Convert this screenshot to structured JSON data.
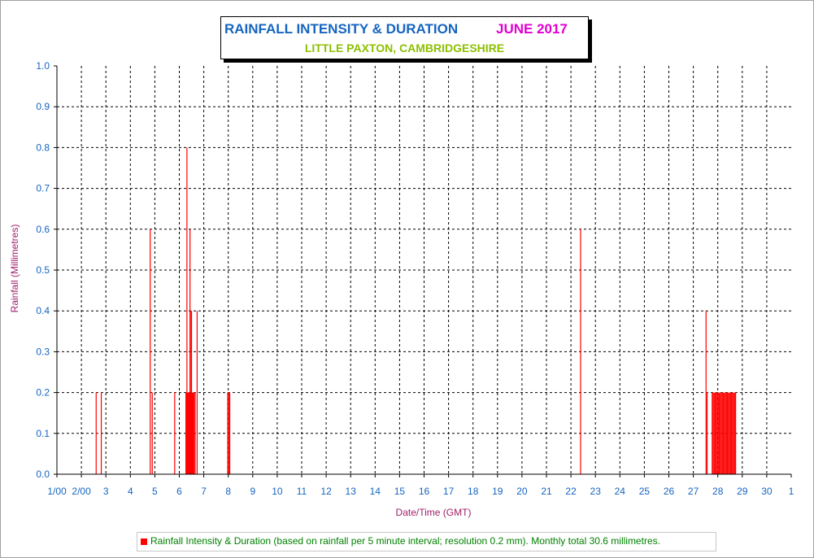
{
  "title": "RAINFALL INTENSITY & DURATION",
  "month": "JUNE 2017",
  "subtitle": "LITTLE PAXTON, CAMBRIDGESHIRE",
  "colors": {
    "title": "#1565c0",
    "month": "#e000d0",
    "subtitle": "#8cc000",
    "bars": "#ff0000",
    "axis_label": "#a0206a",
    "ticks": "#1565c0",
    "legend_text": "#008000"
  },
  "legend": "Rainfall Intensity & Duration (based on rainfall per 5 minute interval; resolution 0.2 mm). Monthly total 30.6 millimetres.",
  "chart_data": {
    "type": "bar",
    "xlabel": "Date/Time (GMT)",
    "ylabel": "Rainfall (Millimetres)",
    "ylim": [
      0,
      1.0
    ],
    "xlim": [
      "2017-06-01 00:00",
      "2017-07-01 00:00"
    ],
    "grid": true,
    "legend_position": "bottom",
    "x_tick_labels": [
      "1/00",
      "2/00",
      "3",
      "4",
      "5",
      "6",
      "7",
      "8",
      "9",
      "10",
      "11",
      "12",
      "13",
      "14",
      "15",
      "16",
      "17",
      "18",
      "19",
      "20",
      "21",
      "22",
      "23",
      "24",
      "25",
      "26",
      "27",
      "28",
      "29",
      "30",
      "1"
    ],
    "y_tick_labels": [
      "0.0",
      "0.1",
      "0.2",
      "0.3",
      "0.4",
      "0.5",
      "0.6",
      "0.7",
      "0.8",
      "0.9",
      "1.0"
    ],
    "series": [
      {
        "name": "Rainfall Intensity & Duration",
        "points": [
          {
            "x": "2017-06-02 14:00",
            "y": 0.2
          },
          {
            "x": "2017-06-02 19:00",
            "y": 0.2
          },
          {
            "x": "2017-06-04 19:00",
            "y": 0.6
          },
          {
            "x": "2017-06-04 21:00",
            "y": 0.2
          },
          {
            "x": "2017-06-05 19:00",
            "y": 0.2
          },
          {
            "x": "2017-06-06 06:00",
            "y": 0.2
          },
          {
            "x": "2017-06-06 06:30",
            "y": 0.2
          },
          {
            "x": "2017-06-06 07:00",
            "y": 0.8
          },
          {
            "x": "2017-06-06 07:30",
            "y": 0.2
          },
          {
            "x": "2017-06-06 08:00",
            "y": 0.2
          },
          {
            "x": "2017-06-06 08:30",
            "y": 0.2
          },
          {
            "x": "2017-06-06 09:00",
            "y": 0.2
          },
          {
            "x": "2017-06-06 09:30",
            "y": 0.2
          },
          {
            "x": "2017-06-06 10:00",
            "y": 0.6
          },
          {
            "x": "2017-06-06 10:30",
            "y": 0.2
          },
          {
            "x": "2017-06-06 11:00",
            "y": 0.4
          },
          {
            "x": "2017-06-06 11:30",
            "y": 0.4
          },
          {
            "x": "2017-06-06 12:00",
            "y": 0.2
          },
          {
            "x": "2017-06-06 12:30",
            "y": 0.2
          },
          {
            "x": "2017-06-06 13:00",
            "y": 0.2
          },
          {
            "x": "2017-06-06 14:00",
            "y": 0.2
          },
          {
            "x": "2017-06-06 15:00",
            "y": 0.2
          },
          {
            "x": "2017-06-06 17:00",
            "y": 0.4
          },
          {
            "x": "2017-06-07 23:00",
            "y": 0.2
          },
          {
            "x": "2017-06-08 00:00",
            "y": 0.2
          },
          {
            "x": "2017-06-08 01:00",
            "y": 0.2
          },
          {
            "x": "2017-06-22 09:00",
            "y": 0.6
          },
          {
            "x": "2017-06-27 12:00",
            "y": 0.4
          },
          {
            "x": "2017-06-27 13:00",
            "y": 0.2
          },
          {
            "x": "2017-06-27 18:00",
            "y": 0.2
          },
          {
            "x": "2017-06-27 19:00",
            "y": 0.2
          },
          {
            "x": "2017-06-27 20:00",
            "y": 0.2
          },
          {
            "x": "2017-06-27 21:00",
            "y": 0.2
          },
          {
            "x": "2017-06-27 22:00",
            "y": 0.2
          },
          {
            "x": "2017-06-27 23:00",
            "y": 0.2
          },
          {
            "x": "2017-06-28 00:00",
            "y": 0.2
          },
          {
            "x": "2017-06-28 01:00",
            "y": 0.2
          },
          {
            "x": "2017-06-28 02:00",
            "y": 0.2
          },
          {
            "x": "2017-06-28 03:00",
            "y": 0.2
          },
          {
            "x": "2017-06-28 04:00",
            "y": 0.2
          },
          {
            "x": "2017-06-28 05:00",
            "y": 0.2
          },
          {
            "x": "2017-06-28 06:00",
            "y": 0.2
          },
          {
            "x": "2017-06-28 07:00",
            "y": 0.2
          },
          {
            "x": "2017-06-28 08:00",
            "y": 0.2
          },
          {
            "x": "2017-06-28 09:00",
            "y": 0.2
          },
          {
            "x": "2017-06-28 10:00",
            "y": 0.2
          },
          {
            "x": "2017-06-28 11:00",
            "y": 0.2
          },
          {
            "x": "2017-06-28 12:00",
            "y": 0.2
          },
          {
            "x": "2017-06-28 13:00",
            "y": 0.2
          },
          {
            "x": "2017-06-28 14:00",
            "y": 0.2
          },
          {
            "x": "2017-06-28 15:00",
            "y": 0.2
          },
          {
            "x": "2017-06-28 16:00",
            "y": 0.2
          },
          {
            "x": "2017-06-28 17:00",
            "y": 0.2
          }
        ]
      }
    ]
  }
}
